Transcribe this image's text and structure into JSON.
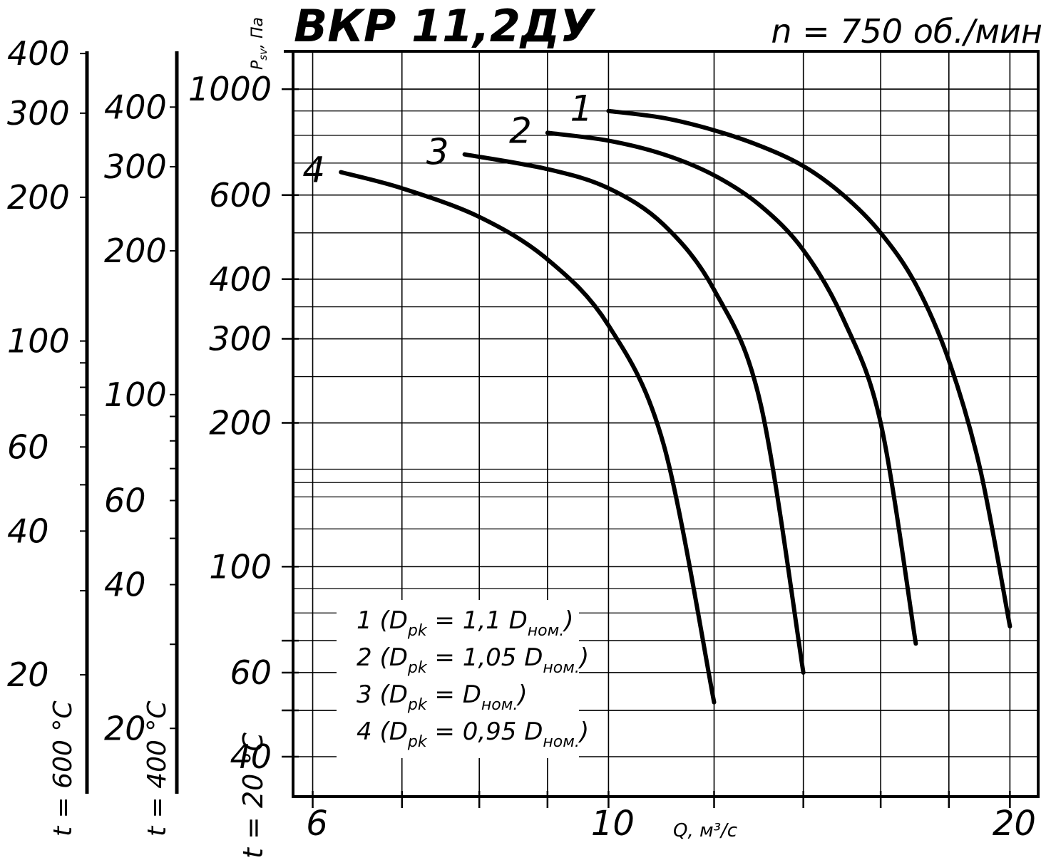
{
  "chart_data": {
    "type": "line",
    "title": "ВКР 11,2ДУ",
    "subtitle": "n = 750 об./мин",
    "xlabel": "Q, м³/с",
    "ylabel_main": "P",
    "ylabel_sub": "sv",
    "ylabel_unit": ", Па",
    "x_scale": "log",
    "y_scale": "log",
    "xlim": [
      5.8,
      21
    ],
    "ylim": [
      33,
      1200
    ],
    "x_ticks": [
      6,
      7,
      8,
      9,
      10,
      12,
      14,
      16,
      18,
      20
    ],
    "x_tick_labels": [
      {
        "value": 6,
        "label": "6"
      },
      {
        "value": 10,
        "label": "10"
      },
      {
        "value": 20,
        "label": "20"
      }
    ],
    "y_ticks": [
      40,
      50,
      60,
      70,
      100,
      200,
      300,
      400,
      600,
      1000
    ],
    "y_tick_labels": [
      {
        "value": 1000,
        "label": "1000"
      },
      {
        "value": 600,
        "label": "600"
      },
      {
        "value": 400,
        "label": "400"
      },
      {
        "value": 300,
        "label": "300"
      },
      {
        "value": 200,
        "label": "200"
      },
      {
        "value": 100,
        "label": "100"
      },
      {
        "value": 60,
        "label": "60"
      },
      {
        "value": 40,
        "label": "40"
      }
    ],
    "grid": true,
    "series": [
      {
        "name": "1",
        "x": [
          10.0,
          11.0,
          12.0,
          13.0,
          14.0,
          15.0,
          16.0,
          17.0,
          18.0,
          19.0,
          20.0
        ],
        "y": [
          900,
          870,
          820,
          760,
          690,
          600,
          500,
          390,
          270,
          160,
          75
        ]
      },
      {
        "name": "2",
        "x": [
          9.0,
          10.0,
          11.0,
          12.0,
          13.0,
          14.0,
          15.0,
          16.0,
          17.0
        ],
        "y": [
          810,
          780,
          730,
          660,
          570,
          460,
          330,
          200,
          69
        ]
      },
      {
        "name": "3",
        "x": [
          7.8,
          9.0,
          10.0,
          11.0,
          12.0,
          13.0,
          14.0
        ],
        "y": [
          730,
          680,
          620,
          520,
          380,
          220,
          60
        ]
      },
      {
        "name": "4",
        "x": [
          6.3,
          7.0,
          8.0,
          9.0,
          10.0,
          11.0,
          12.0
        ],
        "y": [
          670,
          620,
          540,
          440,
          320,
          180,
          52
        ]
      }
    ],
    "curve_labels": [
      "1",
      "2",
      "3",
      "4"
    ],
    "legend_items": [
      {
        "prefix": "1 (D",
        "sub": "pk",
        "mid": " = 1,1 D",
        "sub2": "ном.",
        "suffix": ")"
      },
      {
        "prefix": "2 (D",
        "sub": "pk",
        "mid": " = 1,05 D",
        "sub2": "ном.",
        "suffix": ")"
      },
      {
        "prefix": "3 (D",
        "sub": "pk",
        "mid": " = D",
        "sub2": "ном.",
        "suffix": ")"
      },
      {
        "prefix": "4 (D",
        "sub": "pk",
        "mid": " = 0,95 D",
        "sub2": "ном.",
        "suffix": ")"
      }
    ],
    "aux_axes": [
      {
        "label": "t = 600 °C",
        "ratio": 0.3369,
        "tick_labels": [
          "400",
          "300",
          "200",
          "100",
          "60",
          "40",
          "20"
        ],
        "ticks": [
          10,
          20,
          30,
          40,
          50,
          60,
          70,
          80,
          90,
          100,
          200,
          300,
          400
        ]
      },
      {
        "label": "t = 400 °C",
        "ratio": 0.4362,
        "tick_labels": [
          "400",
          "300",
          "200",
          "100",
          "60",
          "40",
          "20"
        ],
        "ticks": [
          20,
          30,
          40,
          50,
          60,
          70,
          80,
          90,
          100,
          200,
          300,
          400
        ]
      }
    ],
    "main_axis_label": "t = 20 °C"
  }
}
